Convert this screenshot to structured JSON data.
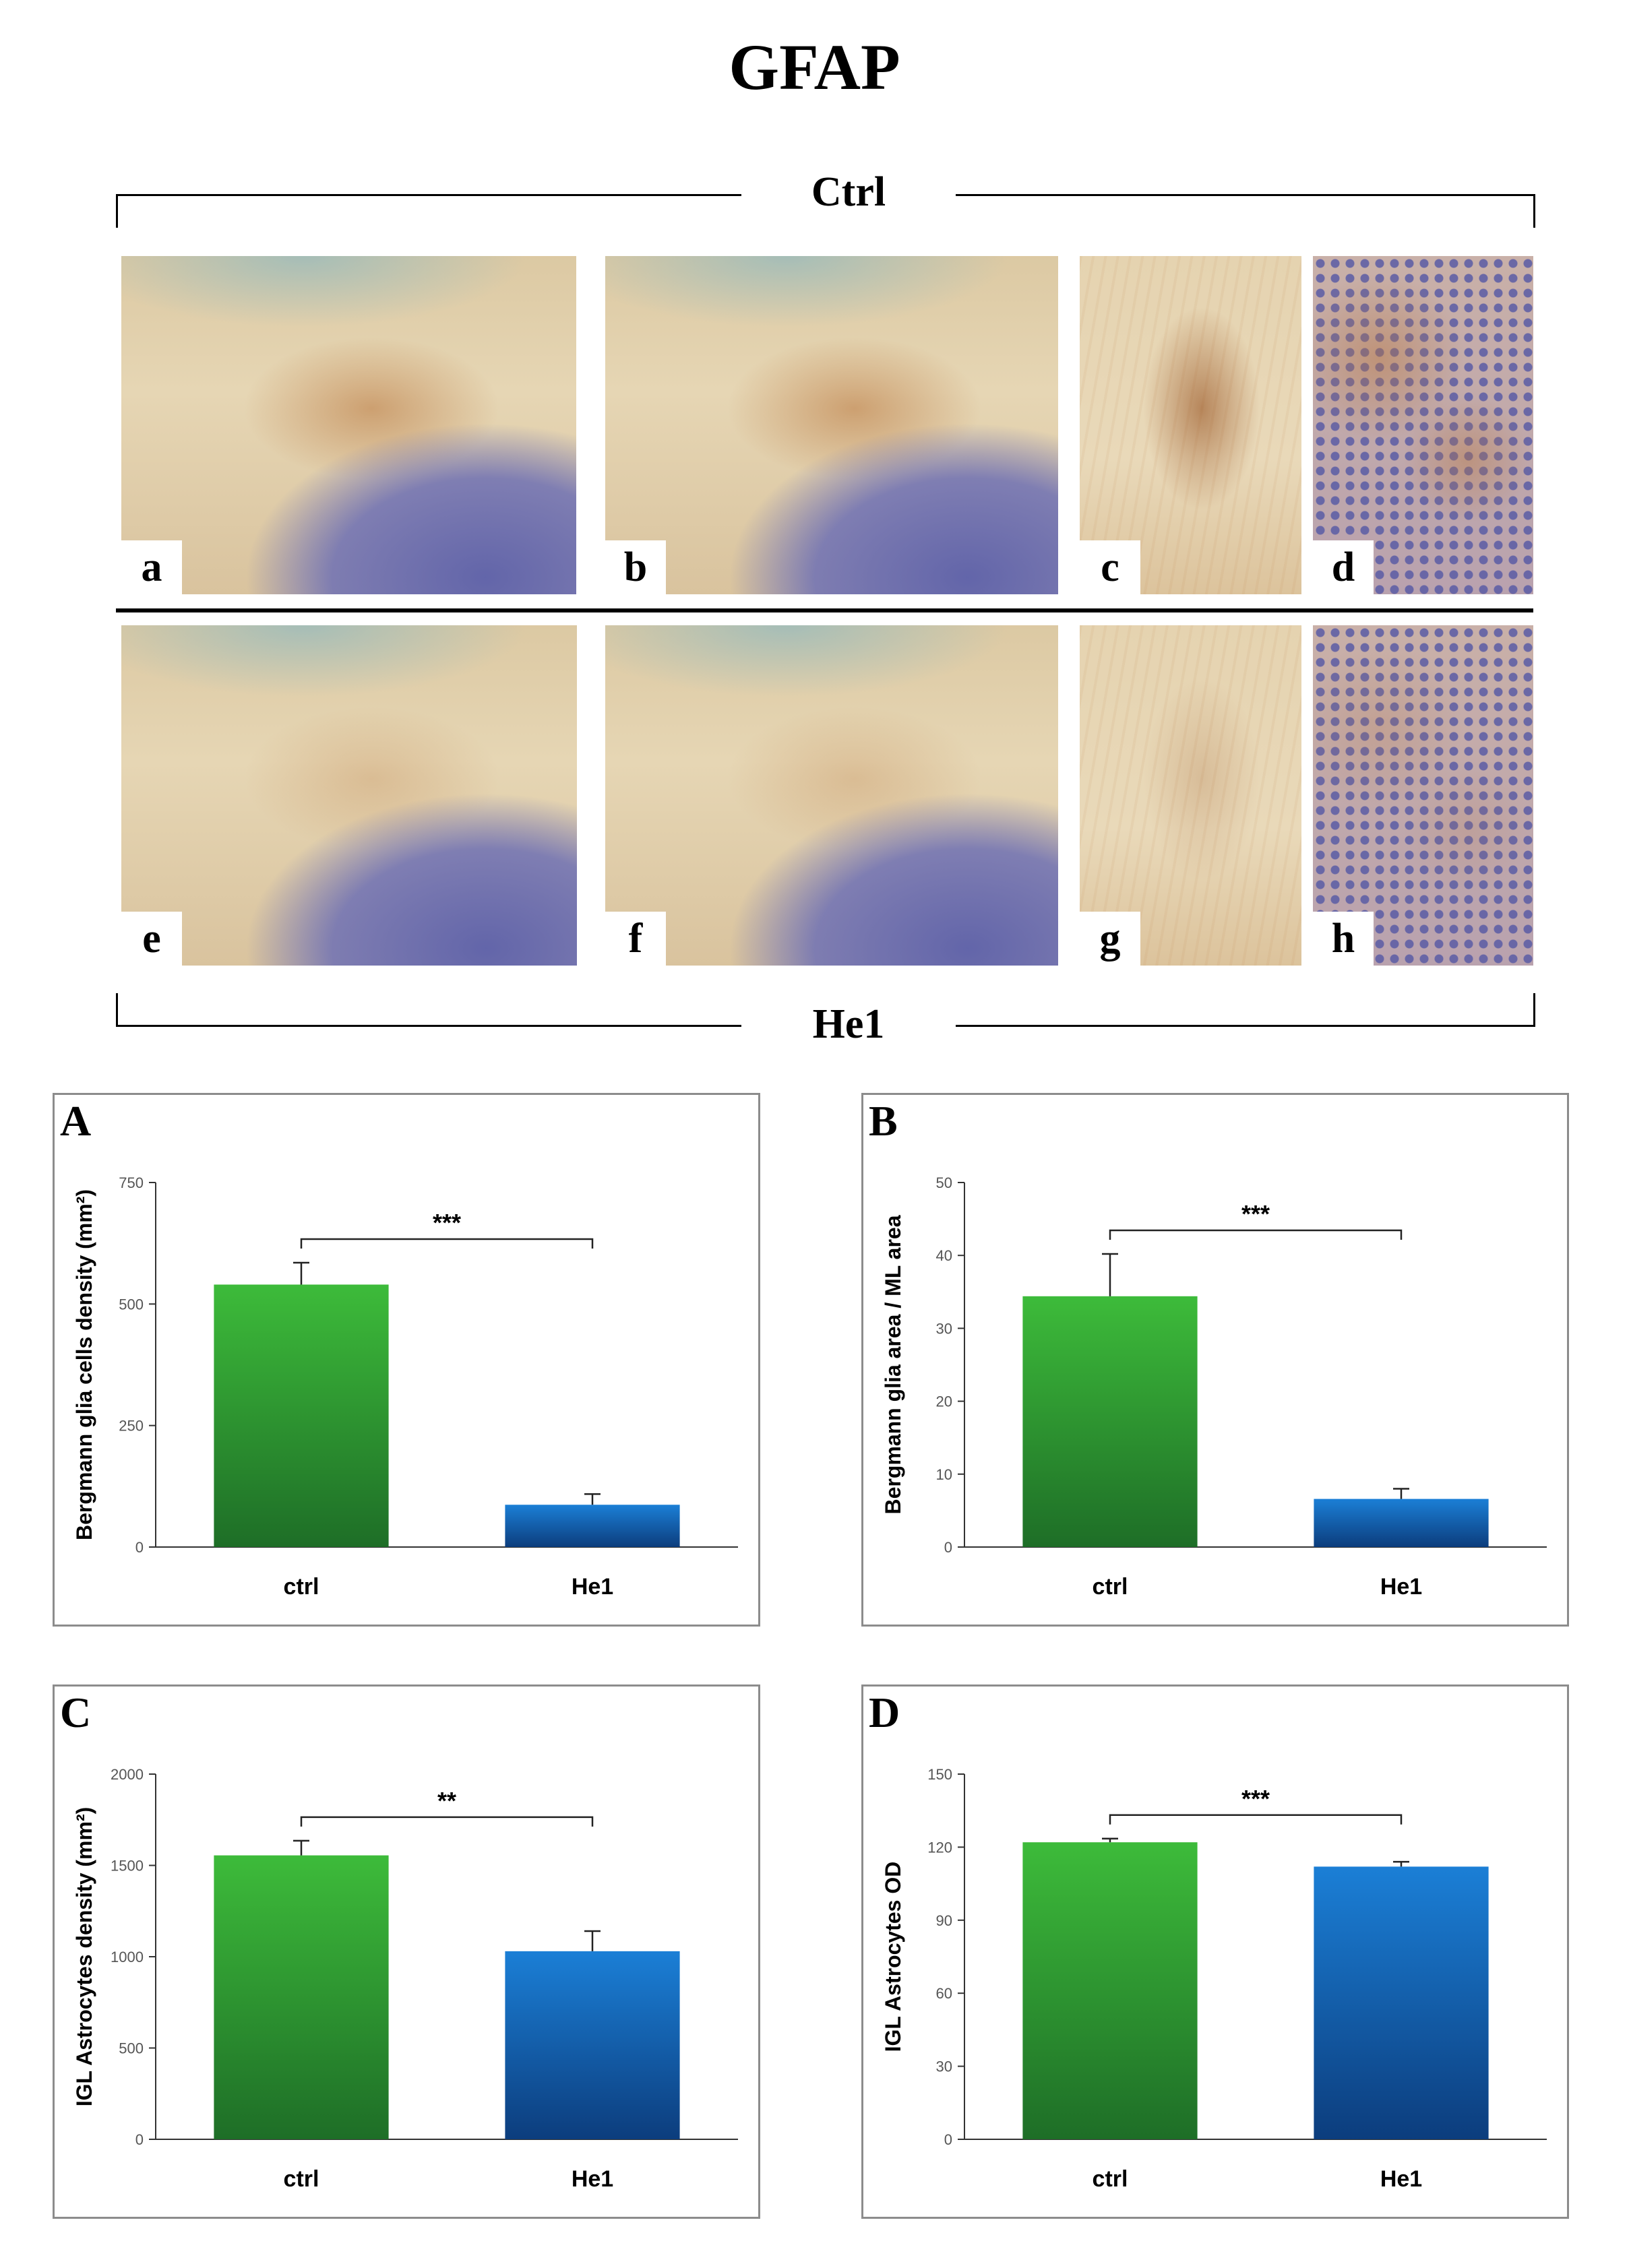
{
  "figure": {
    "title": "GFAP",
    "groups": {
      "top": "Ctrl",
      "bottom": "He1"
    },
    "panels": [
      {
        "letter": "a",
        "type": "cortex-wide",
        "stain": "ctrl"
      },
      {
        "letter": "b",
        "type": "cortex-wide",
        "stain": "ctrl"
      },
      {
        "letter": "c",
        "type": "molecular-layer-zoom",
        "stain": "ctrl"
      },
      {
        "letter": "d",
        "type": "granular-layer-zoom",
        "stain": "ctrl"
      },
      {
        "letter": "e",
        "type": "cortex-wide",
        "stain": "he1"
      },
      {
        "letter": "f",
        "type": "cortex-wide",
        "stain": "he1"
      },
      {
        "letter": "g",
        "type": "molecular-layer-zoom",
        "stain": "he1"
      },
      {
        "letter": "h",
        "type": "granular-layer-zoom",
        "stain": "he1"
      }
    ],
    "colors": {
      "ctrl_bar_top": "#3dbb3a",
      "ctrl_bar_bottom": "#1e6e27",
      "he1_bar_top": "#1b7fd6",
      "he1_bar_bottom": "#0c3d7d",
      "dab_brown": "#b8743a",
      "hematoxylin_blue": "#6f72b8",
      "tissue_beige": "#e6d6b4"
    }
  },
  "chart_data": [
    {
      "letter": "A",
      "type": "bar",
      "categories": [
        "ctrl",
        "He1"
      ],
      "values": [
        540,
        87
      ],
      "errors": [
        45,
        22
      ],
      "ylabel": "Bergmann glia cells density (mm²)",
      "ylim": [
        0,
        750
      ],
      "yticks": [
        "0",
        "250",
        "500",
        "750"
      ],
      "significance": "***"
    },
    {
      "letter": "B",
      "type": "bar",
      "categories": [
        "ctrl",
        "He1"
      ],
      "values": [
        34.4,
        6.6
      ],
      "errors": [
        5.8,
        1.4
      ],
      "ylabel": "Bergmann glia area / ML area",
      "ylim": [
        0,
        50
      ],
      "yticks": [
        "0",
        "10",
        "20",
        "30",
        "40",
        "50"
      ],
      "significance": "***"
    },
    {
      "letter": "C",
      "type": "bar",
      "categories": [
        "ctrl",
        "He1"
      ],
      "values": [
        1555,
        1030
      ],
      "errors": [
        80,
        110
      ],
      "ylabel": "IGL Astrocytes density (mm²)",
      "ylim": [
        0,
        2000
      ],
      "yticks": [
        "0",
        "500",
        "1000",
        "1500",
        "2000"
      ],
      "significance": "**"
    },
    {
      "letter": "D",
      "type": "bar",
      "categories": [
        "ctrl",
        "He1"
      ],
      "values": [
        122,
        112
      ],
      "errors": [
        1.5,
        2
      ],
      "ylabel": "IGL Astrocytes OD",
      "ylim": [
        0,
        150
      ],
      "yticks": [
        "0",
        "30",
        "60",
        "90",
        "120",
        "150"
      ],
      "significance": "***"
    }
  ]
}
